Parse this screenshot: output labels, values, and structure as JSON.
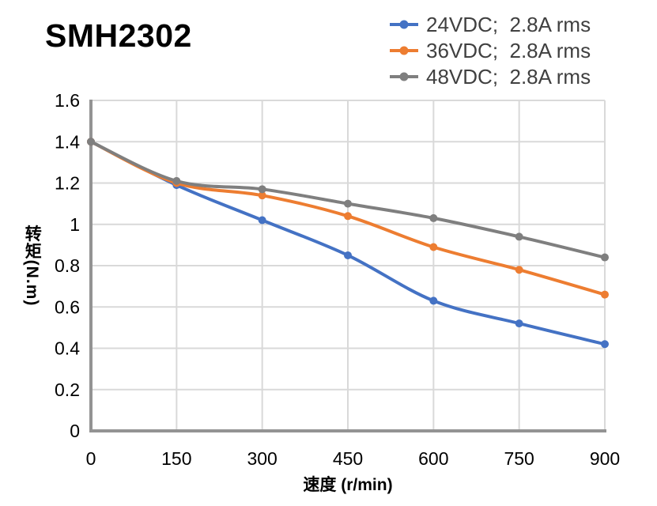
{
  "title": "SMH2302",
  "legend": {
    "position": "top-right",
    "items": [
      {
        "label": "24VDC;  2.8A rms",
        "color": "#4472C4"
      },
      {
        "label": "36VDC;  2.8A rms",
        "color": "#ED7D31"
      },
      {
        "label": "48VDC;  2.8A rms",
        "color": "#7F7F7F"
      }
    ]
  },
  "chart_data": {
    "type": "line",
    "title": "SMH2302",
    "xlabel": "速度 (r/min)",
    "ylabel": "转矩(N.m)",
    "x": [
      0,
      150,
      300,
      450,
      600,
      750,
      900
    ],
    "x_tick_labels": [
      "0",
      "150",
      "300",
      "450",
      "600",
      "750",
      "900"
    ],
    "y_ticks": [
      0,
      0.2,
      0.4,
      0.6,
      0.8,
      1,
      1.2,
      1.4,
      1.6
    ],
    "y_tick_labels": [
      "0",
      "0.2",
      "0.4",
      "0.6",
      "0.8",
      "1",
      "1.2",
      "1.4",
      "1.6"
    ],
    "xlim": [
      0,
      900
    ],
    "ylim": [
      0,
      1.6
    ],
    "grid": true,
    "line_smoothing": true,
    "markers": true,
    "series": [
      {
        "name": "24VDC;  2.8A rms",
        "color": "#4472C4",
        "values": [
          1.4,
          1.19,
          1.02,
          0.85,
          0.63,
          0.52,
          0.42
        ]
      },
      {
        "name": "36VDC;  2.8A rms",
        "color": "#ED7D31",
        "values": [
          1.4,
          1.2,
          1.14,
          1.04,
          0.89,
          0.78,
          0.66
        ]
      },
      {
        "name": "48VDC;  2.8A rms",
        "color": "#7F7F7F",
        "values": [
          1.4,
          1.21,
          1.17,
          1.1,
          1.03,
          0.94,
          0.84
        ]
      }
    ],
    "colors": {
      "gridline": "#D9D9D9",
      "axis": "#939393",
      "tick_text": "#000000",
      "legend_text": "#404040",
      "title_text": "#000000",
      "background": "#FFFFFF"
    }
  }
}
